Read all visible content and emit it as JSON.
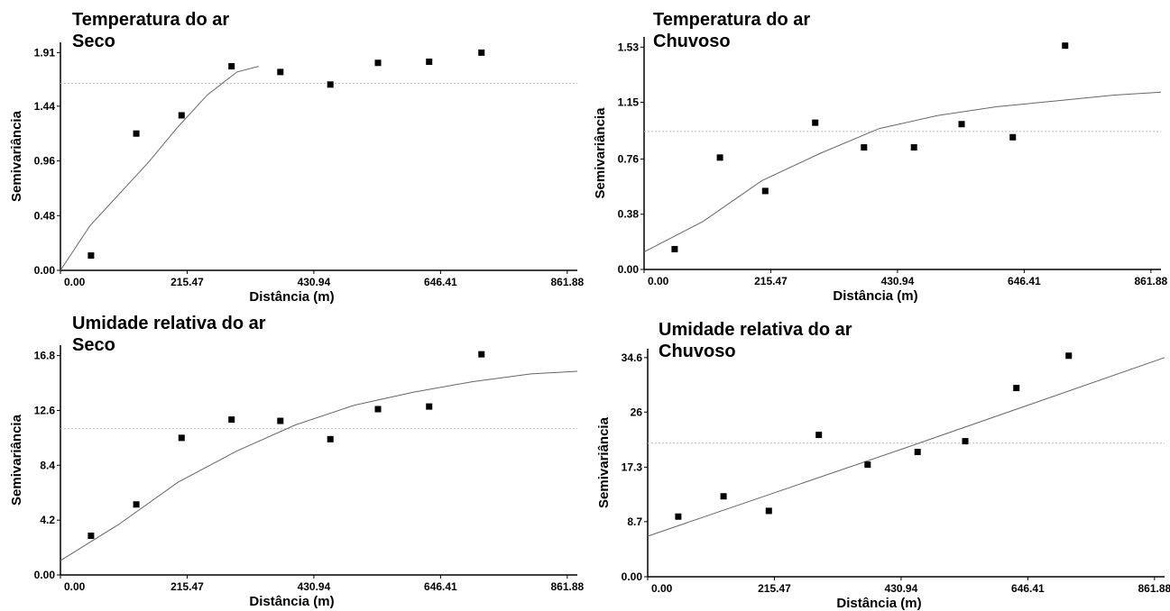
{
  "chart_data": [
    {
      "type": "scatter",
      "title": "Temperatura do ar",
      "subtitle": "Seco",
      "x_label": "Distância (m)",
      "y_label": "Semivariância",
      "x": [
        52,
        129,
        206,
        291,
        374,
        459,
        540,
        627,
        716
      ],
      "values": [
        0.13,
        1.2,
        1.36,
        1.79,
        1.74,
        1.63,
        1.82,
        1.83,
        1.91
      ],
      "fit": {
        "x": [
          0,
          50,
          100,
          150,
          200,
          250,
          300,
          337
        ],
        "values": [
          0,
          0.39,
          0.67,
          0.95,
          1.26,
          1.54,
          1.74,
          1.79
        ]
      },
      "sill": 1.64,
      "xlim": [
        0,
        879
      ],
      "xticks": [
        {
          "value": 0,
          "label": "0.00"
        },
        215.47,
        430.94,
        646.41,
        861.88
      ],
      "ylim": [
        0,
        2
      ],
      "yticks": [
        {
          "value": 0,
          "label": "0.00"
        },
        0.48,
        0.96,
        1.44,
        1.91
      ]
    },
    {
      "type": "scatter",
      "title": "Temperatura do ar",
      "subtitle": "Chuvoso",
      "x_label": "Distância (m)",
      "y_label": "Semivariância",
      "x": [
        52,
        129,
        206,
        291,
        374,
        459,
        540,
        627,
        716
      ],
      "values": [
        0.14,
        0.77,
        0.54,
        1.01,
        0.84,
        0.84,
        1.0,
        0.91,
        1.54
      ],
      "fit": {
        "x": [
          0,
          100,
          200,
          300,
          400,
          500,
          600,
          700,
          800,
          879
        ],
        "values": [
          0.12,
          0.33,
          0.61,
          0.8,
          0.97,
          1.06,
          1.12,
          1.16,
          1.2,
          1.22
        ]
      },
      "sill": 0.95,
      "xlim": [
        0,
        879
      ],
      "xticks": [
        {
          "value": 0,
          "label": "0.00"
        },
        215.47,
        430.94,
        646.41,
        861.88
      ],
      "ylim": [
        0,
        1.6
      ],
      "yticks": [
        {
          "value": 0,
          "label": "0.00"
        },
        0.38,
        0.76,
        1.15,
        1.53
      ]
    },
    {
      "type": "scatter",
      "title": "Umidade relativa do ar",
      "subtitle": "Seco",
      "x_label": "Distância (m)",
      "y_label": "Semivariância",
      "x": [
        52,
        129,
        206,
        291,
        374,
        459,
        540,
        627,
        716
      ],
      "values": [
        3.0,
        5.4,
        10.5,
        11.9,
        11.8,
        10.4,
        12.7,
        12.9,
        16.9
      ],
      "fit": {
        "x": [
          0,
          100,
          200,
          300,
          400,
          500,
          600,
          700,
          800,
          879
        ],
        "values": [
          1.1,
          3.9,
          7.1,
          9.5,
          11.5,
          13.0,
          14.0,
          14.8,
          15.4,
          15.6
        ]
      },
      "sill": 11.2,
      "xlim": [
        0,
        879
      ],
      "xticks": [
        {
          "value": 0,
          "label": "0.00"
        },
        215.47,
        430.94,
        646.41,
        861.88
      ],
      "ylim": [
        0,
        17.6
      ],
      "yticks": [
        {
          "value": 0,
          "label": "0.00"
        },
        4.2,
        8.4,
        12.6,
        16.8
      ]
    },
    {
      "type": "scatter",
      "title": "Umidade relativa do ar",
      "subtitle": "Chuvoso",
      "x_label": "Distância (m)",
      "y_label": "Semivariância",
      "x": [
        52,
        129,
        206,
        291,
        374,
        459,
        540,
        627,
        716
      ],
      "values": [
        9.5,
        12.7,
        10.4,
        22.4,
        17.7,
        19.7,
        21.4,
        29.8,
        34.9
      ],
      "fit": {
        "x": [
          0,
          440,
          879
        ],
        "values": [
          6.4,
          20.4,
          34.6
        ]
      },
      "sill": 21.1,
      "xlim": [
        0,
        879
      ],
      "xticks": [
        {
          "value": 0,
          "label": "0.00"
        },
        215.47,
        430.94,
        646.41,
        861.88
      ],
      "ylim": [
        0,
        36
      ],
      "yticks": [
        {
          "value": 0,
          "label": "0.00"
        },
        8.7,
        17.3,
        26,
        34.6
      ]
    }
  ]
}
